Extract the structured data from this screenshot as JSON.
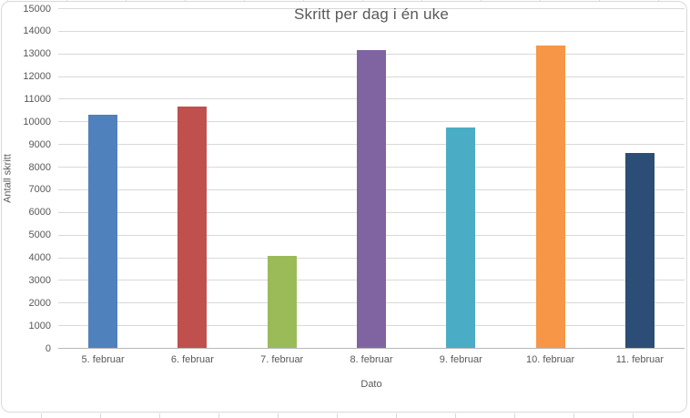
{
  "chart_data": {
    "type": "bar",
    "title": "Skritt per dag i én uke",
    "xlabel": "Dato",
    "ylabel": "Antall skritt",
    "categories": [
      "5. februar",
      "6. februar",
      "7. februar",
      "8. februar",
      "9. februar",
      "10. februar",
      "11. februar"
    ],
    "values": [
      10300,
      10670,
      4080,
      13150,
      9730,
      13340,
      8600
    ],
    "bar_colors": [
      "#4F81BD",
      "#C0504D",
      "#9BBB59",
      "#8064A2",
      "#4BACC6",
      "#F79646",
      "#2C4D75"
    ],
    "ylim": [
      0,
      15000
    ],
    "ytick_step": 1000,
    "grid": true,
    "legend": false,
    "style": {
      "gridline_color": "#d9d9d9",
      "axis_line_color": "#b7b7b7",
      "text_color": "#595959",
      "frame_border_color": "#d9d9d9",
      "background": "#ffffff"
    }
  }
}
